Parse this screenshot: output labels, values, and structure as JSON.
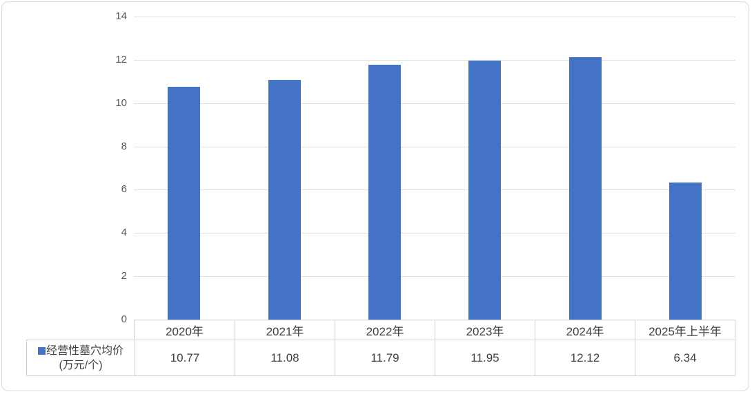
{
  "chart_data": {
    "type": "bar",
    "title": "",
    "categories": [
      "2020年",
      "2021年",
      "2022年",
      "2023年",
      "2024年",
      "2025年上半年"
    ],
    "series": [
      {
        "name": "经营性墓穴均价(万元/个)",
        "values": [
          10.77,
          11.08,
          11.79,
          11.95,
          12.12,
          6.34
        ]
      }
    ],
    "xlabel": "",
    "ylabel": "",
    "ylim": [
      0,
      14
    ],
    "yticks": [
      0,
      2,
      4,
      6,
      8,
      10,
      12,
      14
    ],
    "ytick_labels": [
      "0",
      "2",
      "4",
      "6",
      "8",
      "10",
      "12",
      "14"
    ],
    "grid": true,
    "legend_position": "table-left"
  },
  "table": {
    "header_row": [
      "2020年",
      "2021年",
      "2022年",
      "2023年",
      "2024年",
      "2025年上半年"
    ],
    "value_row": [
      "10.77",
      "11.08",
      "11.79",
      "11.95",
      "12.12",
      "6.34"
    ],
    "legend_label_line1": "经营性墓穴均价",
    "legend_label_line2": "(万元/个)"
  },
  "colors": {
    "bar": "#4472c4",
    "gridline": "#e0e0e0",
    "axis_text": "#555555",
    "table_text": "#404040",
    "table_border": "#d0d0d0",
    "frame_border": "#d9d9d9",
    "background": "#ffffff"
  }
}
